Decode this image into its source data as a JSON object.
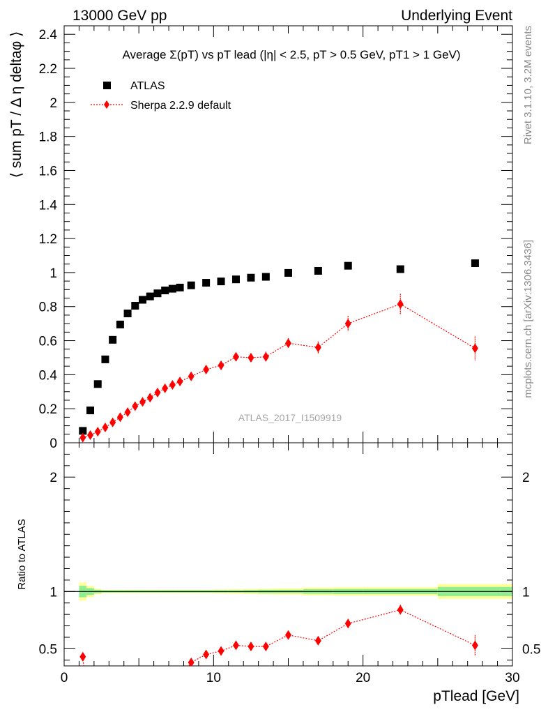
{
  "header": {
    "left": "13000 GeV pp",
    "right": "Underlying Event"
  },
  "side": {
    "rivet": "Rivet 3.1.10,  3.2M events",
    "mcplots": "mcplots.cern.ch [arXiv:1306.3436]"
  },
  "chart_data": [
    {
      "type": "scatter",
      "title": "Average Σ(pT) vs pT lead (|η| < 2.5, pT > 0.5 GeV, pT1 > 1 GeV)",
      "ylabel": "⟨ sum pT / Δ η deltaφ ⟩",
      "watermark": "ATLAS_2017_I1509919",
      "xlim": [
        0,
        30
      ],
      "ylim": [
        0,
        2.45
      ],
      "yticks": [
        0,
        0.2,
        0.4,
        0.6,
        0.8,
        1,
        1.2,
        1.4,
        1.6,
        1.8,
        2,
        2.2,
        2.4
      ],
      "yticklabels": [
        "0",
        "0.2",
        "0.4",
        "0.6",
        "0.8",
        "1",
        "1.2",
        "1.4",
        "1.6",
        "1.8",
        "2",
        "2.2",
        "2.4"
      ],
      "legend_position": "top-left",
      "series": [
        {
          "name": "ATLAS",
          "color": "#000000",
          "marker": "square",
          "x": [
            1.25,
            1.75,
            2.25,
            2.75,
            3.25,
            3.75,
            4.25,
            4.75,
            5.25,
            5.75,
            6.25,
            6.75,
            7.25,
            7.75,
            8.5,
            9.5,
            10.5,
            11.5,
            12.5,
            13.5,
            15,
            17,
            19,
            22.5,
            27.5
          ],
          "y": [
            0.07,
            0.19,
            0.345,
            0.49,
            0.605,
            0.695,
            0.76,
            0.805,
            0.84,
            0.86,
            0.878,
            0.895,
            0.905,
            0.912,
            0.925,
            0.94,
            0.948,
            0.96,
            0.97,
            0.975,
            0.998,
            1.01,
            1.04,
            1.02,
            1.055
          ]
        },
        {
          "name": "Sherpa 2.2.9 default",
          "color": "#ff0000",
          "marker": "diamond",
          "x": [
            1.25,
            1.75,
            2.25,
            2.75,
            3.25,
            3.75,
            4.25,
            4.75,
            5.25,
            5.75,
            6.25,
            6.75,
            7.25,
            7.75,
            8.5,
            9.5,
            10.5,
            11.5,
            12.5,
            13.5,
            15,
            17,
            19,
            22.5,
            27.5
          ],
          "y": [
            0.03,
            0.045,
            0.065,
            0.09,
            0.12,
            0.15,
            0.18,
            0.215,
            0.24,
            0.265,
            0.295,
            0.32,
            0.34,
            0.36,
            0.39,
            0.43,
            0.455,
            0.505,
            0.5,
            0.505,
            0.585,
            0.56,
            0.7,
            0.815,
            0.555
          ],
          "yerr": [
            0.005,
            0.005,
            0.005,
            0.006,
            0.006,
            0.007,
            0.008,
            0.008,
            0.009,
            0.01,
            0.01,
            0.011,
            0.012,
            0.012,
            0.015,
            0.018,
            0.02,
            0.025,
            0.025,
            0.03,
            0.03,
            0.035,
            0.045,
            0.06,
            0.07
          ]
        }
      ]
    },
    {
      "type": "scatter",
      "ylabel": "Ratio to ATLAS",
      "xlabel": "pTlead [GeV]",
      "xlim": [
        0,
        30
      ],
      "ylim": [
        0.35,
        2.3
      ],
      "xticks": [
        0,
        10,
        20,
        30
      ],
      "xticklabels": [
        "0",
        "10",
        "20",
        "30"
      ],
      "yticks": [
        0.5,
        1,
        2
      ],
      "yticklabels": [
        "0.5",
        "1",
        "2"
      ],
      "reference_line": 1,
      "band_edges": [
        1,
        1.5,
        2,
        2.5,
        3,
        3.5,
        4,
        4.5,
        5,
        5.5,
        6,
        6.5,
        7,
        7.5,
        8,
        9,
        10,
        11,
        12,
        13,
        14,
        16,
        18,
        20,
        25,
        30
      ],
      "band_inner": [
        0.05,
        0.03,
        0.015,
        0.01,
        0.01,
        0.01,
        0.01,
        0.01,
        0.01,
        0.01,
        0.01,
        0.01,
        0.01,
        0.01,
        0.01,
        0.01,
        0.01,
        0.01,
        0.012,
        0.015,
        0.015,
        0.02,
        0.022,
        0.022,
        0.04
      ],
      "band_outer": [
        0.08,
        0.05,
        0.025,
        0.015,
        0.015,
        0.015,
        0.015,
        0.015,
        0.015,
        0.015,
        0.015,
        0.015,
        0.015,
        0.015,
        0.015,
        0.015,
        0.018,
        0.02,
        0.022,
        0.025,
        0.028,
        0.035,
        0.038,
        0.038,
        0.065
      ],
      "band_inner_color": "#90ee90",
      "band_outer_color": "#ffff99",
      "series": [
        {
          "name": "Sherpa 2.2.9 default",
          "color": "#ff0000",
          "marker": "diamond",
          "x": [
            1.25,
            8.5,
            9.5,
            10.5,
            11.5,
            12.5,
            13.5,
            15,
            17,
            19,
            22.5,
            27.5
          ],
          "y": [
            0.43,
            0.38,
            0.45,
            0.48,
            0.53,
            0.52,
            0.52,
            0.62,
            0.57,
            0.72,
            0.84,
            0.53
          ],
          "yerr": [
            0.02,
            0.02,
            0.02,
            0.025,
            0.03,
            0.03,
            0.035,
            0.035,
            0.035,
            0.04,
            0.045,
            0.09
          ]
        }
      ]
    }
  ]
}
